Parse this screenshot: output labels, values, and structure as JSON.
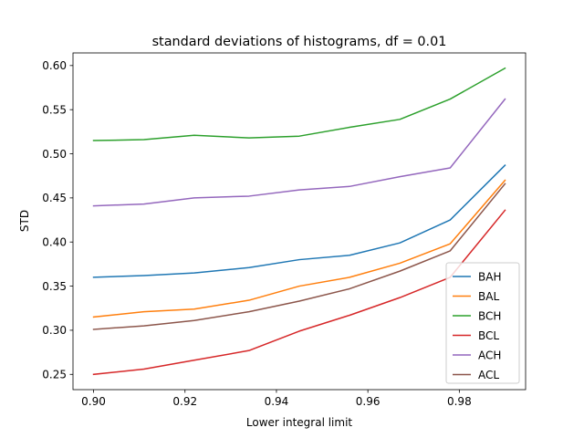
{
  "chart_data": {
    "type": "line",
    "title": "standard deviations of histograms, df = 0.01",
    "xlabel": "Lower integral limit",
    "ylabel": "STD",
    "xlim": [
      0.8955,
      0.9945
    ],
    "ylim": [
      0.2327,
      0.6143
    ],
    "xticks": [
      0.9,
      0.92,
      0.94,
      0.96,
      0.98
    ],
    "xtick_labels": [
      "0.90",
      "0.92",
      "0.94",
      "0.96",
      "0.98"
    ],
    "yticks": [
      0.25,
      0.3,
      0.35,
      0.4,
      0.45,
      0.5,
      0.55,
      0.6
    ],
    "ytick_labels": [
      "0.25",
      "0.30",
      "0.35",
      "0.40",
      "0.45",
      "0.50",
      "0.55",
      "0.60"
    ],
    "grid": false,
    "legend_position": "lower-right",
    "x": [
      0.9,
      0.911,
      0.922,
      0.934,
      0.945,
      0.956,
      0.967,
      0.978,
      0.99
    ],
    "series": [
      {
        "name": "BAH",
        "color": "#1f77b4",
        "values": [
          0.36,
          0.362,
          0.365,
          0.371,
          0.38,
          0.385,
          0.399,
          0.425,
          0.487
        ]
      },
      {
        "name": "BAL",
        "color": "#ff7f0e",
        "values": [
          0.315,
          0.321,
          0.324,
          0.334,
          0.35,
          0.36,
          0.376,
          0.398,
          0.47
        ]
      },
      {
        "name": "BCH",
        "color": "#2ca02c",
        "values": [
          0.515,
          0.516,
          0.521,
          0.518,
          0.52,
          0.53,
          0.539,
          0.562,
          0.597
        ]
      },
      {
        "name": "BCL",
        "color": "#d62728",
        "values": [
          0.25,
          0.256,
          0.266,
          0.277,
          0.299,
          0.317,
          0.337,
          0.36,
          0.436
        ]
      },
      {
        "name": "ACH",
        "color": "#9467bd",
        "values": [
          0.441,
          0.443,
          0.45,
          0.452,
          0.459,
          0.463,
          0.474,
          0.484,
          0.562
        ]
      },
      {
        "name": "ACL",
        "color": "#8c564b",
        "values": [
          0.301,
          0.305,
          0.311,
          0.321,
          0.333,
          0.347,
          0.367,
          0.39,
          0.466
        ]
      }
    ]
  }
}
